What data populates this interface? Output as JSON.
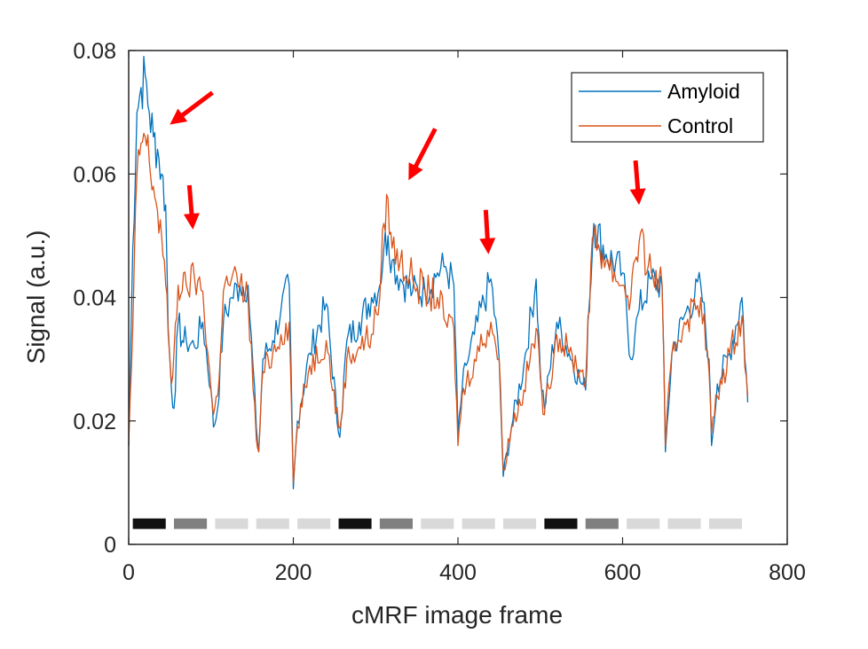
{
  "chart_data": {
    "type": "line",
    "xlabel": "cMRF image frame",
    "ylabel": "Signal (a.u.)",
    "xlim": [
      0,
      800
    ],
    "ylim": [
      0,
      0.08
    ],
    "xticks": [
      0,
      200,
      400,
      600,
      800
    ],
    "yticks": [
      0,
      0.02,
      0.04,
      0.06,
      0.08
    ],
    "xtick_labels": [
      "0",
      "200",
      "400",
      "600",
      "800"
    ],
    "ytick_labels": [
      "0",
      "0.02",
      "0.04",
      "0.06",
      "0.08"
    ],
    "legend_position": "top-right",
    "series": [
      {
        "name": "Amyloid",
        "color": "#0072BD",
        "x": [
          0,
          5,
          10,
          15,
          20,
          25,
          30,
          35,
          40,
          45,
          48,
          52,
          55,
          60,
          65,
          70,
          80,
          90,
          100,
          103,
          108,
          115,
          125,
          135,
          145,
          155,
          158,
          163,
          175,
          185,
          195,
          200,
          205,
          220,
          240,
          255,
          258,
          265,
          280,
          295,
          305,
          310,
          315,
          320,
          330,
          345,
          360,
          375,
          385,
          395,
          400,
          405,
          410,
          420,
          440,
          450,
          455,
          465,
          480,
          495,
          500,
          505,
          520,
          535,
          550,
          555,
          558,
          565,
          580,
          600,
          610,
          615,
          620,
          635,
          648,
          652,
          660,
          675,
          695,
          705,
          708,
          715,
          730,
          745,
          752
        ],
        "y": [
          0.016,
          0.048,
          0.07,
          0.074,
          0.076,
          0.07,
          0.066,
          0.064,
          0.06,
          0.055,
          0.035,
          0.025,
          0.022,
          0.036,
          0.033,
          0.033,
          0.032,
          0.036,
          0.025,
          0.019,
          0.022,
          0.036,
          0.04,
          0.042,
          0.042,
          0.019,
          0.015,
          0.03,
          0.033,
          0.038,
          0.042,
          0.009,
          0.02,
          0.031,
          0.039,
          0.018,
          0.02,
          0.033,
          0.036,
          0.04,
          0.042,
          0.048,
          0.05,
          0.046,
          0.043,
          0.041,
          0.041,
          0.044,
          0.045,
          0.042,
          0.018,
          0.025,
          0.029,
          0.034,
          0.043,
          0.03,
          0.011,
          0.019,
          0.029,
          0.043,
          0.028,
          0.022,
          0.036,
          0.031,
          0.026,
          0.025,
          0.036,
          0.052,
          0.047,
          0.044,
          0.03,
          0.034,
          0.038,
          0.043,
          0.042,
          0.015,
          0.031,
          0.037,
          0.042,
          0.03,
          0.016,
          0.026,
          0.031,
          0.04,
          0.023
        ]
      },
      {
        "name": "Control",
        "color": "#D95319",
        "x": [
          0,
          5,
          10,
          15,
          20,
          25,
          30,
          35,
          40,
          45,
          48,
          52,
          55,
          60,
          65,
          70,
          80,
          90,
          100,
          103,
          108,
          115,
          125,
          135,
          145,
          155,
          158,
          163,
          175,
          185,
          195,
          200,
          205,
          220,
          240,
          255,
          258,
          265,
          280,
          295,
          305,
          310,
          315,
          320,
          330,
          345,
          360,
          375,
          385,
          395,
          400,
          405,
          410,
          420,
          440,
          450,
          455,
          465,
          480,
          495,
          500,
          505,
          520,
          535,
          550,
          555,
          558,
          565,
          580,
          600,
          610,
          615,
          620,
          635,
          648,
          652,
          660,
          675,
          695,
          705,
          708,
          715,
          730,
          745,
          752
        ],
        "y": [
          0.016,
          0.035,
          0.06,
          0.065,
          0.066,
          0.062,
          0.058,
          0.054,
          0.05,
          0.042,
          0.034,
          0.026,
          0.031,
          0.042,
          0.041,
          0.042,
          0.043,
          0.041,
          0.025,
          0.021,
          0.024,
          0.041,
          0.043,
          0.042,
          0.04,
          0.017,
          0.015,
          0.028,
          0.031,
          0.034,
          0.036,
          0.01,
          0.019,
          0.029,
          0.033,
          0.019,
          0.02,
          0.03,
          0.032,
          0.034,
          0.04,
          0.052,
          0.056,
          0.048,
          0.046,
          0.043,
          0.041,
          0.04,
          0.036,
          0.035,
          0.016,
          0.024,
          0.026,
          0.03,
          0.036,
          0.03,
          0.012,
          0.019,
          0.025,
          0.035,
          0.027,
          0.021,
          0.034,
          0.031,
          0.028,
          0.026,
          0.037,
          0.05,
          0.046,
          0.042,
          0.04,
          0.046,
          0.049,
          0.044,
          0.042,
          0.016,
          0.031,
          0.036,
          0.04,
          0.028,
          0.018,
          0.024,
          0.031,
          0.037,
          0.024
        ]
      }
    ],
    "annotations": {
      "arrows": [
        {
          "description": "red arrow",
          "tip": [
            50,
            0.068
          ]
        },
        {
          "description": "red arrow",
          "tip": [
            78,
            0.051
          ]
        },
        {
          "description": "red arrow",
          "tip": [
            340,
            0.059
          ]
        },
        {
          "description": "red arrow",
          "tip": [
            437,
            0.047
          ]
        },
        {
          "description": "red arrow",
          "tip": [
            620,
            0.055
          ]
        }
      ],
      "pulse_blocks": [
        {
          "x": [
            5,
            45
          ],
          "shade": "#111111"
        },
        {
          "x": [
            55,
            95
          ],
          "shade": "#808080"
        },
        {
          "x": [
            105,
            145
          ],
          "shade": "#d9d9d9"
        },
        {
          "x": [
            155,
            195
          ],
          "shade": "#d9d9d9"
        },
        {
          "x": [
            205,
            245
          ],
          "shade": "#d9d9d9"
        },
        {
          "x": [
            255,
            295
          ],
          "shade": "#111111"
        },
        {
          "x": [
            305,
            345
          ],
          "shade": "#808080"
        },
        {
          "x": [
            355,
            395
          ],
          "shade": "#d9d9d9"
        },
        {
          "x": [
            405,
            445
          ],
          "shade": "#d9d9d9"
        },
        {
          "x": [
            455,
            495
          ],
          "shade": "#d9d9d9"
        },
        {
          "x": [
            505,
            545
          ],
          "shade": "#111111"
        },
        {
          "x": [
            555,
            595
          ],
          "shade": "#808080"
        },
        {
          "x": [
            605,
            645
          ],
          "shade": "#d9d9d9"
        },
        {
          "x": [
            655,
            695
          ],
          "shade": "#d9d9d9"
        },
        {
          "x": [
            705,
            745
          ],
          "shade": "#d9d9d9"
        }
      ],
      "pulse_block_y": [
        0.0025,
        0.0042
      ]
    },
    "colors": {
      "arrow": "#ff0000",
      "axis": "#262626"
    }
  }
}
